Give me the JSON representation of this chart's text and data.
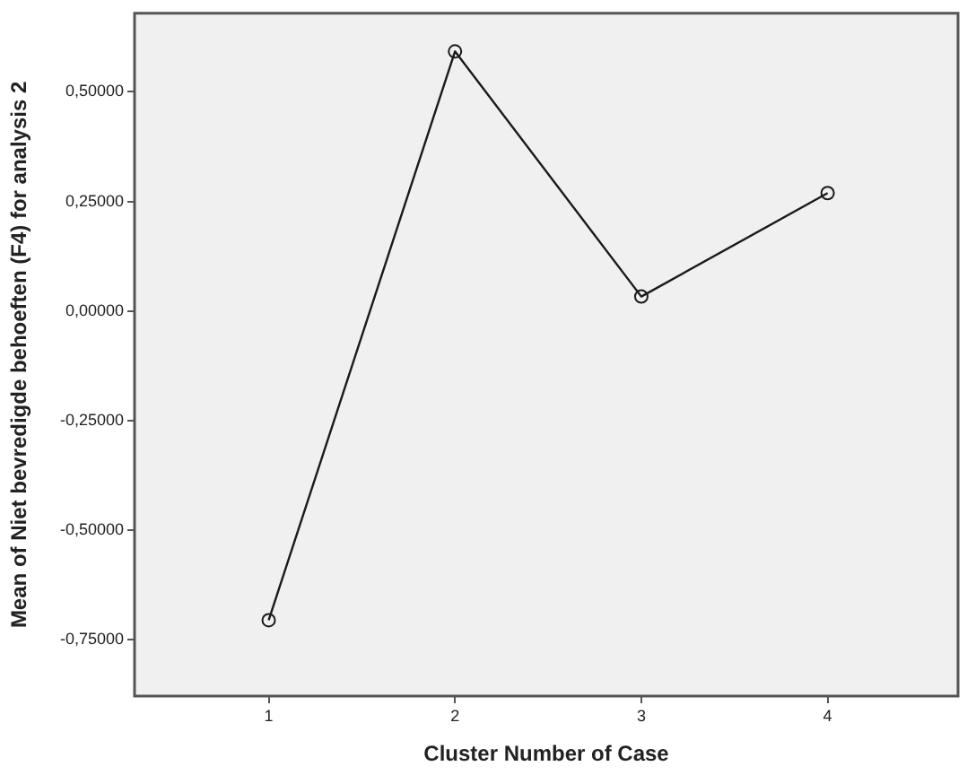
{
  "chart_data": {
    "type": "line",
    "xlabel": "Cluster Number of Case",
    "ylabel": "Mean of Niet bevredigde behoeften (F4) for analysis 2",
    "x": [
      1,
      2,
      3,
      4
    ],
    "xlim": [
      0.28,
      4.7
    ],
    "xticks": [
      1,
      2,
      3,
      4
    ],
    "ylim": [
      -0.878,
      0.679
    ],
    "yticks": [
      {
        "value": 0.5,
        "label": "0,50000"
      },
      {
        "value": 0.25,
        "label": "0,25000"
      },
      {
        "value": 0,
        "label": "0,00000"
      },
      {
        "value": -0.25,
        "label": "-0,25000"
      },
      {
        "value": -0.5,
        "label": "-0,50000"
      },
      {
        "value": -0.75,
        "label": "-0,75000"
      }
    ],
    "series": [
      {
        "color": "#1a1a1a",
        "values": [
          -0.705,
          0.592,
          0.033,
          0.269
        ]
      }
    ],
    "marker": "circle",
    "grid": false,
    "legend": false
  }
}
